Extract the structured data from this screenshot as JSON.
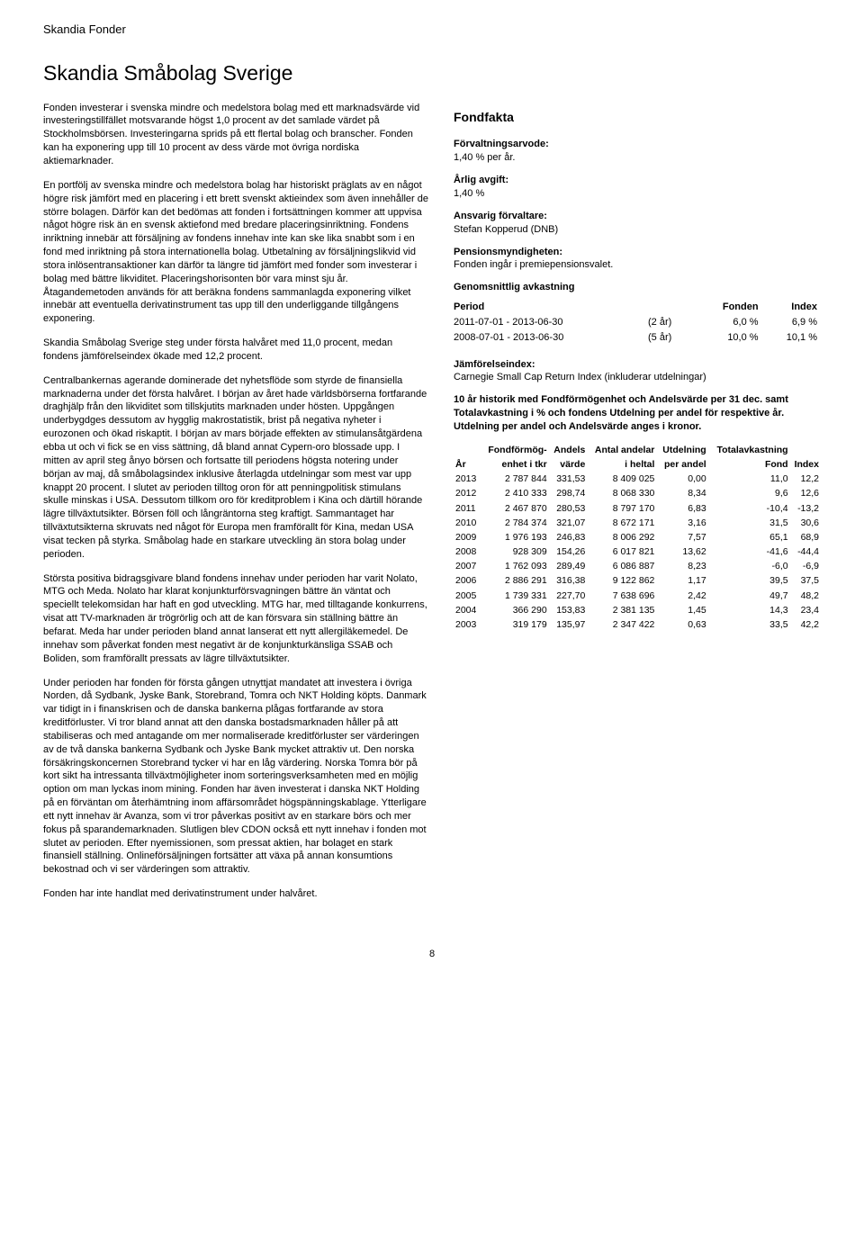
{
  "header": {
    "brand": "Skandia Fonder"
  },
  "title": "Skandia Småbolag Sverige",
  "left_paragraphs": [
    "Fonden investerar i svenska mindre och medelstora bolag med ett marknadsvärde vid investeringstillfället motsvarande högst 1,0 procent av det samlade värdet på Stockholmsbörsen. Investeringarna sprids på ett flertal bolag och branscher. Fonden kan ha exponering upp till 10 procent av dess värde mot övriga nordiska aktiemarknader.",
    "En portfölj av svenska mindre och medelstora bolag har historiskt präglats av en något högre risk jämfört med en placering i ett brett svenskt aktieindex som även innehåller de större bolagen. Därför kan det bedömas att fonden i fortsättningen kommer att uppvisa något högre risk än en svensk aktiefond med bredare placeringsinriktning. Fondens inriktning innebär att försäljning av fondens innehav inte kan ske lika snabbt som i en fond med inriktning på stora internationella bolag. Utbetalning av försäljningslikvid vid stora inlösentransaktioner kan därför ta längre tid jämfört med fonder som investerar i bolag med bättre likviditet. Placeringshorisonten bör vara minst sju år. Åtagandemetoden används för att beräkna fondens sammanlagda exponering vilket innebär att eventuella derivatinstrument tas upp till den underliggande tillgångens exponering.",
    "Skandia Småbolag Sverige steg under första halvåret med 11,0 procent, medan fondens jämförelseindex ökade med 12,2 procent.",
    "Centralbankernas agerande dominerade det nyhetsflöde som styrde de finansiella marknaderna under det första halvåret. I början av året hade världsbörserna fortfarande draghjälp från den likviditet som tillskjutits marknaden under hösten. Uppgången underbygdges dessutom av hygglig makrostatistik, brist på negativa nyheter i eurozonen och ökad riskaptit. I början av mars började effekten av stimulansåtgärdena ebba ut och vi fick se en viss sättning, då bland annat Cypern-oro blossade upp. I mitten av april steg ånyo börsen och fortsatte till periodens högsta notering under början av maj, då småbolagsindex inklusive återlagda utdelningar som mest var upp knappt 20 procent. I slutet av perioden tilltog oron för att penningpolitisk stimulans skulle minskas i USA. Dessutom tillkom oro för kreditproblem i Kina och därtill hörande lägre tillväxtutsikter. Börsen föll och långräntorna steg kraftigt. Sammantaget har tillväxtutsikterna skruvats ned något för Europa men framförallt för Kina, medan USA visat tecken på styrka. Småbolag hade en starkare utveckling än stora bolag under perioden.",
    "Största positiva bidragsgivare bland fondens innehav under perioden har varit Nolato, MTG och Meda. Nolato har klarat konjunkturförsvagningen bättre än väntat och speciellt telekomsidan har haft en god utveckling. MTG har, med tilltagande konkurrens, visat att TV-marknaden är trögrörlig och att de kan försvara sin ställning bättre än befarat. Meda har under perioden bland annat lanserat ett nytt allergiläkemedel. De innehav som påverkat fonden mest negativt är de konjunkturkänsliga SSAB och Boliden, som framförallt pressats av lägre tillväxtutsikter.",
    "Under perioden har fonden för första gången utnyttjat mandatet att investera i övriga Norden, då Sydbank, Jyske Bank, Storebrand, Tomra och NKT Holding köpts. Danmark var tidigt in i finanskrisen och de danska bankerna plågas fortfarande av stora kreditförluster. Vi tror bland annat att den danska bostadsmarknaden håller på att stabiliseras och med antagande om mer normaliserade kreditförluster ser värderingen av de två danska bankerna Sydbank och Jyske Bank mycket attraktiv ut. Den norska försäkringskoncernen Storebrand tycker vi har en låg värdering. Norska Tomra bör på kort sikt ha intressanta tillväxtmöjligheter inom sorteringsverksamheten med en möjlig option om man lyckas inom mining. Fonden har även investerat i danska NKT Holding på en förväntan om återhämtning inom affärsområdet högspänningskablage. Ytterligare ett nytt innehav är Avanza, som vi tror påverkas positivt av en starkare börs och mer fokus på sparandemarknaden. Slutligen blev CDON också ett nytt innehav i fonden mot slutet av perioden. Efter nyemissionen, som pressat aktien, har bolaget en stark finansiell ställning. Onlineförsäljningen fortsätter att växa på annan konsumtions bekostnad och vi ser värderingen som attraktiv.",
    "Fonden har inte handlat med derivatinstrument under halvåret."
  ],
  "fondfakta": {
    "title": "Fondfakta",
    "items": [
      {
        "label": "Förvaltningsarvode:",
        "value": "1,40 % per år."
      },
      {
        "label": "Årlig avgift:",
        "value": "1,40 %"
      },
      {
        "label": "Ansvarig förvaltare:",
        "value": "Stefan Kopperud (DNB)"
      },
      {
        "label": "Pensionsmyndigheten:",
        "value": "Fonden ingår i premiepensionsvalet."
      }
    ],
    "avkastning_label": "Genomsnittlig avkastning",
    "avkastning": {
      "columns": [
        "Period",
        "",
        "Fonden",
        "Index"
      ],
      "rows": [
        [
          "2011-07-01 - 2013-06-30",
          "(2 år)",
          "6,0 %",
          "6,9 %"
        ],
        [
          "2008-07-01 - 2013-06-30",
          "(5 år)",
          "10,0 %",
          "10,1 %"
        ]
      ]
    },
    "jamforelseindex_label": "Jämförelseindex:",
    "jamforelseindex_value": "Carnegie Small Cap Return Index (inkluderar utdelningar)"
  },
  "hist": {
    "intro_lines": [
      "10 år historik med Fondförmögenhet och Andelsvärde per 31 dec. samt",
      "Totalavkastning i % och fondens Utdelning per andel för respektive år.",
      "Utdelning per andel och Andelsvärde anges i kronor."
    ],
    "columns": [
      {
        "l1": "",
        "l2": "År",
        "align": "l"
      },
      {
        "l1": "Fondförmög-",
        "l2": "enhet i tkr",
        "align": "r"
      },
      {
        "l1": "Andels",
        "l2": "värde",
        "align": "r"
      },
      {
        "l1": "Antal andelar",
        "l2": "i heltal",
        "align": "r"
      },
      {
        "l1": "Utdelning",
        "l2": "per andel",
        "align": "r"
      },
      {
        "l1": "Totalavkastning",
        "l2": "Fond",
        "align": "r"
      },
      {
        "l1": "",
        "l2": "Index",
        "align": "r"
      }
    ],
    "rows": [
      [
        "2013",
        "2 787 844",
        "331,53",
        "8 409 025",
        "0,00",
        "11,0",
        "12,2"
      ],
      [
        "2012",
        "2 410 333",
        "298,74",
        "8 068 330",
        "8,34",
        "9,6",
        "12,6"
      ],
      [
        "2011",
        "2 467 870",
        "280,53",
        "8 797 170",
        "6,83",
        "-10,4",
        "-13,2"
      ],
      [
        "2010",
        "2 784 374",
        "321,07",
        "8 672 171",
        "3,16",
        "31,5",
        "30,6"
      ],
      [
        "2009",
        "1 976 193",
        "246,83",
        "8 006 292",
        "7,57",
        "65,1",
        "68,9"
      ],
      [
        "2008",
        "928 309",
        "154,26",
        "6 017 821",
        "13,62",
        "-41,6",
        "-44,4"
      ],
      [
        "2007",
        "1 762 093",
        "289,49",
        "6 086 887",
        "8,23",
        "-6,0",
        "-6,9"
      ],
      [
        "2006",
        "2 886 291",
        "316,38",
        "9 122 862",
        "1,17",
        "39,5",
        "37,5"
      ],
      [
        "2005",
        "1 739 331",
        "227,70",
        "7 638 696",
        "2,42",
        "49,7",
        "48,2"
      ],
      [
        "2004",
        "366 290",
        "153,83",
        "2 381 135",
        "1,45",
        "14,3",
        "23,4"
      ],
      [
        "2003",
        "319 179",
        "135,97",
        "2 347 422",
        "0,63",
        "33,5",
        "42,2"
      ]
    ]
  },
  "page_number": "8"
}
